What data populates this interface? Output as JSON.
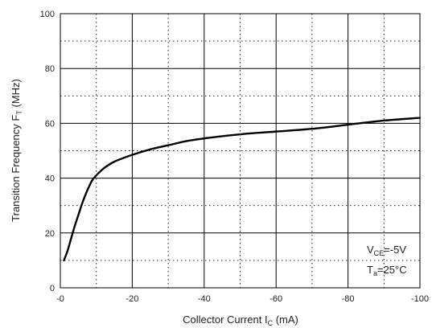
{
  "chart_data": {
    "type": "line",
    "x_ticks": [
      "-0",
      "-20",
      "-40",
      "-60",
      "-80",
      "-100"
    ],
    "y_ticks": [
      "0",
      "20",
      "40",
      "60",
      "80",
      "100"
    ],
    "xlim": [
      0,
      -100
    ],
    "ylim": [
      0,
      100
    ],
    "grid": {
      "major": "solid",
      "minor": "dotted",
      "x_minor_step": -10,
      "y_minor_step": 10
    },
    "xlabel": {
      "main": "Collector Current  I",
      "sub": "C",
      "unit": " (mA)"
    },
    "ylabel": {
      "main": "Transition Frequency   F",
      "sub": "T",
      "unit": " (MHz)"
    },
    "annotations": [
      {
        "main": "V",
        "sub": "CE",
        "rest": "=-5V"
      },
      {
        "main": "T",
        "sub": "a",
        "rest": "=25°C"
      }
    ],
    "series": [
      {
        "x": [
          -1,
          -2,
          -3,
          -4,
          -5,
          -6,
          -7,
          -8,
          -9,
          -10,
          -12,
          -15,
          -20,
          -25,
          -30,
          -35,
          -40,
          -50,
          -60,
          -70,
          -80,
          -90,
          -100
        ],
        "y": [
          10,
          13.5,
          18,
          22.5,
          26.5,
          30.5,
          34,
          37,
          39.5,
          41,
          43.5,
          46,
          48.5,
          50.5,
          52,
          53.5,
          54.5,
          56,
          57,
          58,
          59.5,
          61,
          62
        ]
      }
    ]
  }
}
